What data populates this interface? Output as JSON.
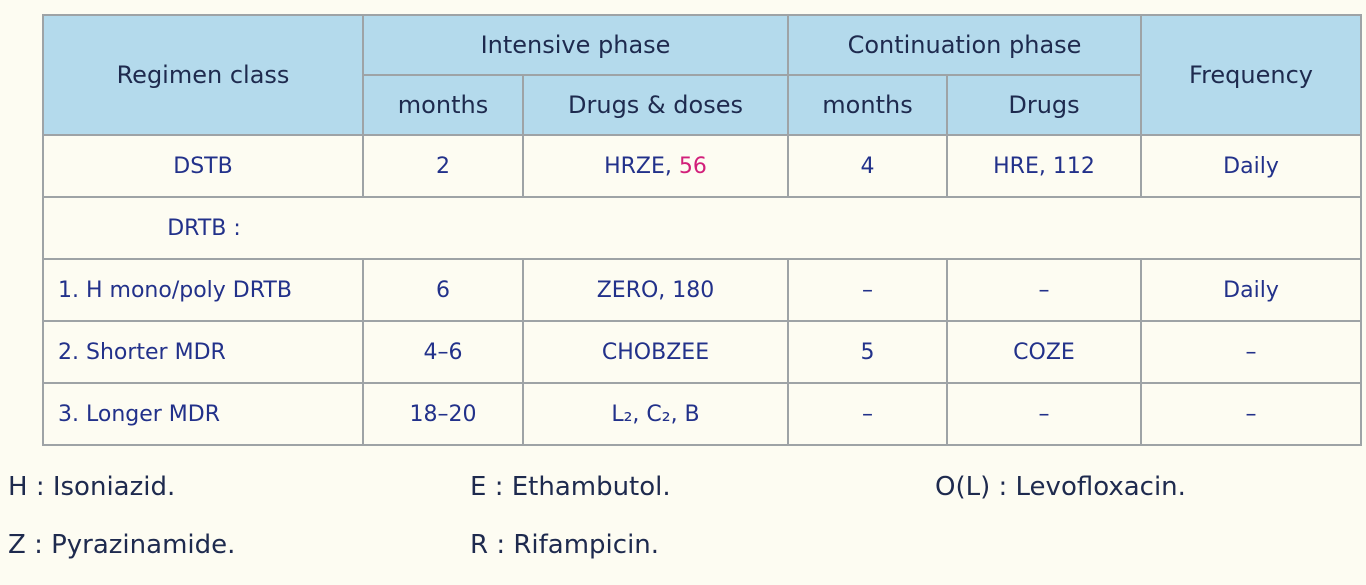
{
  "table": {
    "header": {
      "regimen_class": "Regimen class",
      "intensive_phase": "Intensive phase",
      "continuation_phase": "Continuation phase",
      "frequency": "Frequency",
      "sub": [
        "months",
        "Drugs & doses",
        "months",
        "Drugs"
      ]
    },
    "rows": [
      [
        "DSTB",
        "2",
        {
          "text": "HRZE,",
          "highlight": "56"
        },
        "4",
        "HRE, 112",
        "Daily"
      ],
      [
        "DRTB :"
      ],
      [
        "1.  H mono/poly DRTB",
        "6",
        "ZERO, 180",
        "–",
        "–",
        "Daily"
      ],
      [
        "2. Shorter MDR",
        "4–6",
        "CHOBZEE",
        "5",
        "COZE",
        "–"
      ],
      [
        "3. Longer MDR",
        "18–20",
        "L₂, C₂, B",
        "–",
        "–",
        "–"
      ]
    ]
  },
  "legend": [
    [
      "H : Isoniazid.",
      "E : Ethambutol.",
      "O(L) : Levofloxacin."
    ],
    [
      "Z : Pyrazinamide.",
      "R : Rifampicin."
    ]
  ]
}
